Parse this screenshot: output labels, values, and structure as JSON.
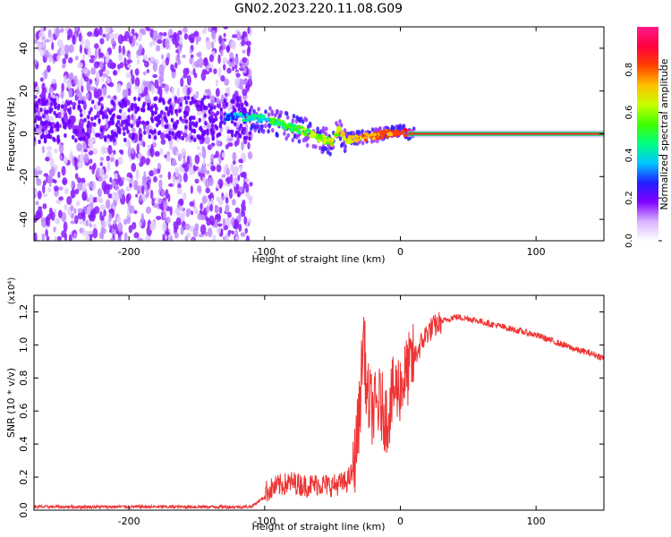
{
  "title": "GN02.2023.220.11.08.G09",
  "chart_data": [
    {
      "type": "heatmap",
      "xlabel": "Height of straight line (km)",
      "ylabel": "Frequency (Hz)",
      "xlim": [
        -270,
        150
      ],
      "ylim": [
        -50,
        50
      ],
      "x_ticks": [
        -200,
        -100,
        0,
        100
      ],
      "y_ticks": [
        -40,
        -20,
        0,
        20,
        40
      ],
      "colorbar": {
        "label": "Normalized spectral amplitude",
        "range": [
          0,
          1
        ],
        "ticks": [
          0.0,
          0.2,
          0.4,
          0.6,
          0.8
        ],
        "tick_labels": [
          "0.0",
          "0.2",
          "0.4",
          "0.6",
          "0.8"
        ],
        "colormap": [
          "#ffffff",
          "#d9b3ff",
          "#8000ff",
          "#2020ff",
          "#00c8ff",
          "#00ff80",
          "#40ff00",
          "#c8ff00",
          "#ffc000",
          "#ff4000",
          "#ff0040",
          "#ff1a8c"
        ]
      },
      "signal_track": [
        {
          "x": -270,
          "y": 6
        },
        {
          "x": -150,
          "y": 7
        },
        {
          "x": -120,
          "y": 8
        },
        {
          "x": -100,
          "y": 7
        },
        {
          "x": -90,
          "y": 5
        },
        {
          "x": -80,
          "y": 3
        },
        {
          "x": -70,
          "y": 1
        },
        {
          "x": -60,
          "y": -2
        },
        {
          "x": -50,
          "y": -4
        },
        {
          "x": -45,
          "y": 2
        },
        {
          "x": -40,
          "y": -3
        },
        {
          "x": -30,
          "y": -2
        },
        {
          "x": -20,
          "y": -1
        },
        {
          "x": -10,
          "y": 0
        },
        {
          "x": 0,
          "y": 1
        },
        {
          "x": 10,
          "y": 0
        },
        {
          "x": 150,
          "y": 0
        }
      ]
    },
    {
      "type": "line",
      "xlabel": "Height of straight line (km)",
      "ylabel": "SNR (10 * v/v)",
      "y_multiplier_label": "(x10⁴)",
      "xlim": [
        -270,
        150
      ],
      "ylim": [
        0,
        1.3
      ],
      "x_ticks": [
        -200,
        -100,
        0,
        100
      ],
      "y_ticks": [
        0.0,
        0.2,
        0.4,
        0.6,
        0.8,
        1.0,
        1.2
      ],
      "color": "#ee3333",
      "series": [
        {
          "x": [
            -270,
            -250,
            -200,
            -150,
            -110,
            -100,
            -90,
            -80,
            -70,
            -60,
            -50,
            -40,
            -35,
            -30,
            -27,
            -25,
            -20,
            -15,
            -10,
            -5,
            0,
            10,
            20,
            30,
            40,
            50,
            60,
            70,
            80,
            90,
            100,
            110,
            120,
            130,
            140,
            150
          ],
          "values": [
            0.02,
            0.02,
            0.02,
            0.02,
            0.02,
            0.08,
            0.12,
            0.14,
            0.12,
            0.13,
            0.12,
            0.14,
            0.2,
            0.6,
            1.1,
            0.7,
            0.6,
            0.65,
            0.55,
            0.72,
            0.75,
            0.92,
            1.08,
            1.14,
            1.17,
            1.16,
            1.14,
            1.12,
            1.1,
            1.08,
            1.06,
            1.03,
            1.0,
            0.97,
            0.95,
            0.92
          ]
        }
      ]
    }
  ]
}
